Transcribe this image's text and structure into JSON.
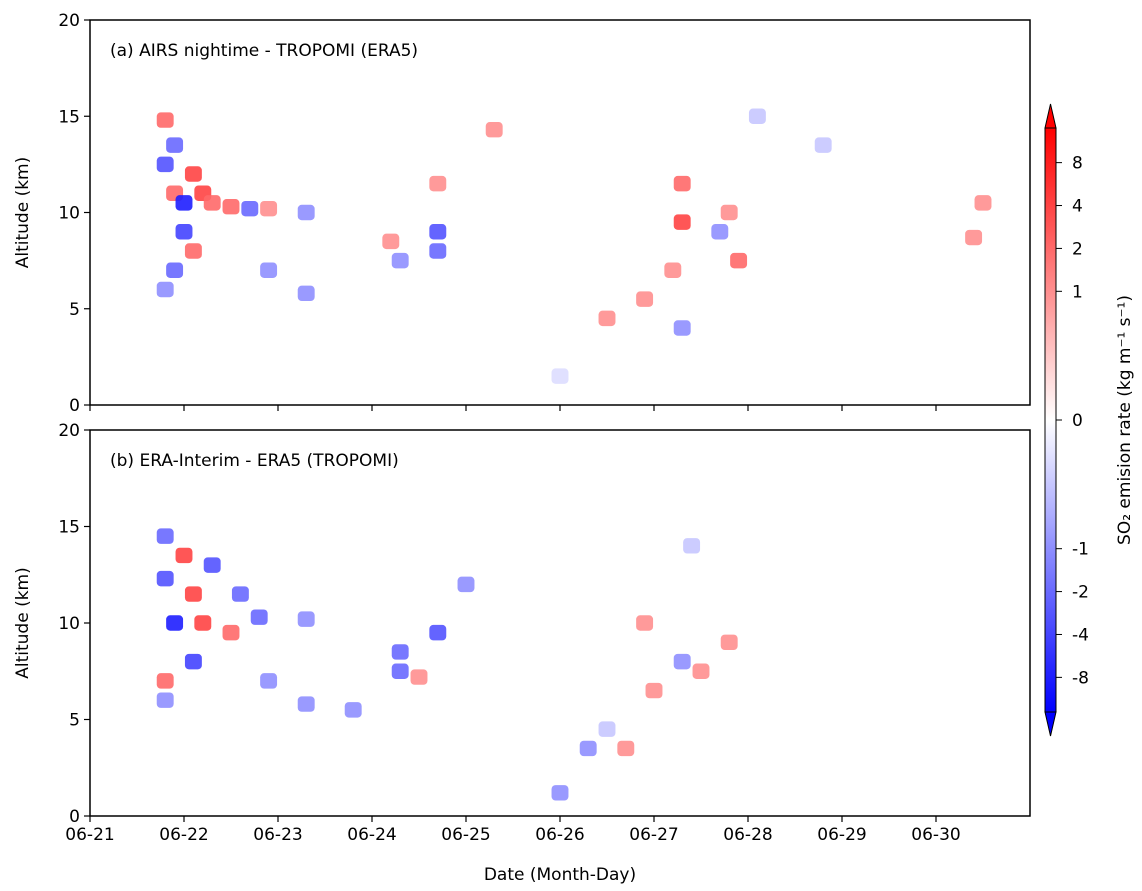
{
  "chart_data": [
    {
      "type": "heatmap",
      "title": "(a) AIRS nightime - TROPOMI (ERA5)",
      "ylabel": "Altitude (km)",
      "xlim": [
        21,
        31
      ],
      "xticks": [
        21,
        22,
        23,
        24,
        25,
        26,
        27,
        28,
        29,
        30
      ],
      "ylim": [
        0,
        20
      ],
      "yticks": [
        0,
        5,
        10,
        15,
        20
      ],
      "x": [
        21.8,
        21.9,
        21.8,
        21.9,
        22.0,
        22.0,
        22.1,
        22.2,
        22.3,
        22.1,
        21.9,
        21.8,
        22.5,
        22.7,
        22.9,
        23.3,
        22.9,
        23.3,
        24.2,
        24.3,
        24.7,
        24.7,
        25.3,
        24.7,
        26.5,
        26.9,
        27.2,
        27.3,
        27.3,
        27.3,
        27.7,
        27.9,
        27.8,
        28.8,
        28.1,
        30.4,
        30.5,
        26.0
      ],
      "y": [
        14.8,
        13.5,
        12.5,
        11,
        10.5,
        9,
        12,
        11,
        10.5,
        8,
        7,
        6,
        10.3,
        10.2,
        10.2,
        10,
        7,
        5.8,
        8.5,
        7.5,
        9,
        8,
        14.3,
        11.5,
        4.5,
        5.5,
        7,
        9.5,
        11.5,
        4,
        9,
        7.5,
        10,
        13.5,
        15,
        8.7,
        10.5,
        1.5
      ],
      "values": [
        2,
        -2,
        -3,
        2,
        -8,
        -4,
        4,
        4,
        2,
        2,
        -2,
        -1,
        2,
        -2,
        1,
        -1,
        -1,
        -1,
        1,
        -1,
        -3,
        -2,
        1,
        1,
        1,
        1,
        1,
        4,
        2,
        -1,
        -1,
        2,
        1,
        -0.5,
        -0.5,
        1,
        1,
        -0.3
      ]
    },
    {
      "type": "heatmap",
      "title": "(b) ERA-Interim - ERA5 (TROPOMI)",
      "ylabel": "Altitude (km)",
      "xlabel": "Date (Month-Day)",
      "xlim": [
        21,
        31
      ],
      "xticks": [
        {
          "value": 21,
          "label": "06-21"
        },
        {
          "value": 22,
          "label": "06-22"
        },
        {
          "value": 23,
          "label": "06-23"
        },
        {
          "value": 24,
          "label": "06-24"
        },
        {
          "value": 25,
          "label": "06-25"
        },
        {
          "value": 26,
          "label": "06-26"
        },
        {
          "value": 27,
          "label": "06-27"
        },
        {
          "value": 28,
          "label": "06-28"
        },
        {
          "value": 29,
          "label": "06-29"
        },
        {
          "value": 30,
          "label": "06-30"
        }
      ],
      "ylim": [
        0,
        20
      ],
      "yticks": [
        0,
        5,
        10,
        15,
        20
      ],
      "x": [
        21.8,
        21.8,
        22.0,
        22.3,
        22.6,
        22.1,
        21.9,
        22.2,
        22.5,
        22.1,
        21.8,
        21.8,
        22.8,
        23.3,
        22.9,
        23.3,
        23.8,
        24.3,
        24.3,
        24.5,
        24.7,
        25.0,
        26.0,
        26.3,
        26.5,
        26.7,
        27.0,
        27.3,
        27.5,
        27.8,
        27.4,
        26.9
      ],
      "y": [
        14.5,
        12.3,
        13.5,
        13,
        11.5,
        11.5,
        10,
        10,
        9.5,
        8,
        7,
        6,
        10.3,
        10.2,
        7,
        5.8,
        5.5,
        8.5,
        7.5,
        7.2,
        9.5,
        12,
        1.2,
        3.5,
        4.5,
        3.5,
        6.5,
        8,
        7.5,
        9,
        14,
        10
      ],
      "values": [
        -2,
        -3,
        4,
        -3,
        -2,
        4,
        -8,
        4,
        2,
        -4,
        2,
        -1,
        -2,
        -1,
        -1,
        -1,
        -1,
        -2,
        -2,
        1,
        -3,
        -1,
        -1,
        -1,
        -0.5,
        1,
        1,
        -1,
        1,
        1,
        -0.5,
        1
      ]
    }
  ],
  "colorbar": {
    "label": "SO₂ emision rate (kg m⁻¹ s⁻¹)",
    "scale": "symlog",
    "linthresh": 1,
    "clim": [
      -14,
      14
    ],
    "ticks": [
      -8,
      -4,
      -2,
      -1,
      0,
      1,
      2,
      4,
      8
    ],
    "colors": [
      "#0000ff",
      "#ffffff",
      "#ff0000"
    ]
  }
}
